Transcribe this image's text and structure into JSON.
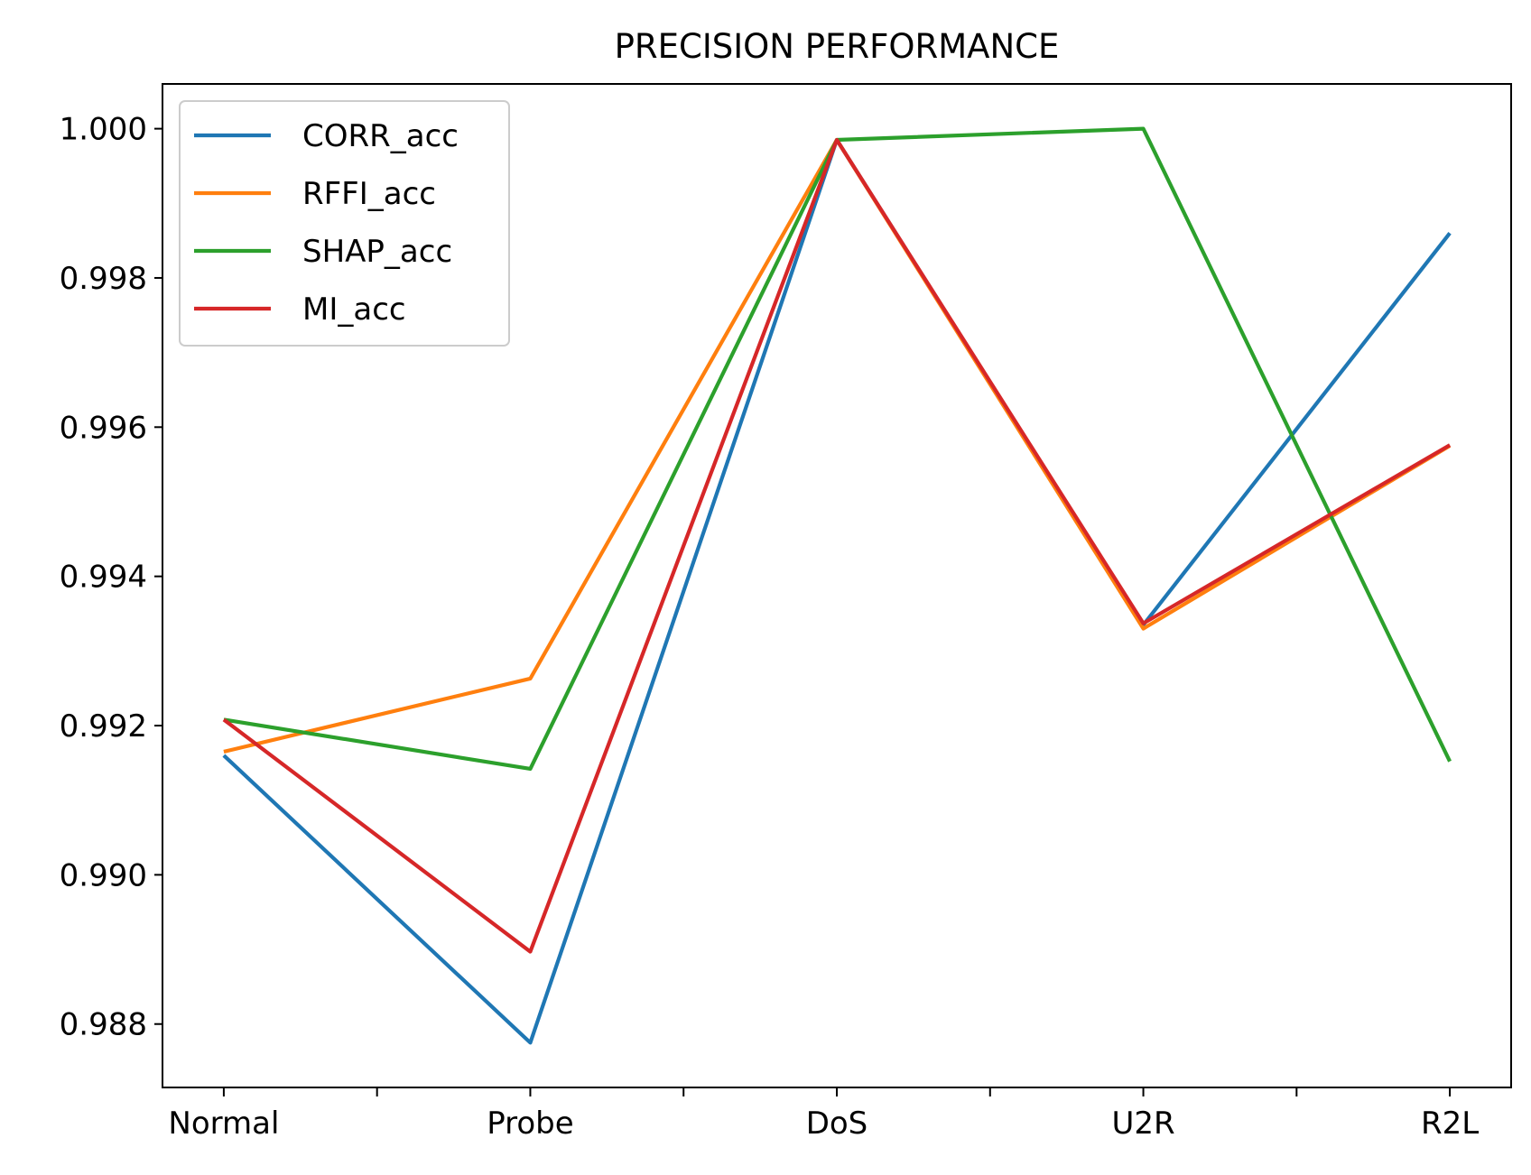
{
  "chart_data": {
    "type": "line",
    "title": "PRECISION PERFORMANCE",
    "xlabel": "",
    "ylabel": "",
    "categories": [
      "Normal",
      "Probe",
      "DoS",
      "U2R",
      "R2L"
    ],
    "ylim": [
      0.98715,
      1.0006
    ],
    "yticks": [
      0.988,
      0.99,
      0.992,
      0.994,
      0.996,
      0.998,
      1.0
    ],
    "ytick_labels": [
      "0.988",
      "0.990",
      "0.992",
      "0.994",
      "0.996",
      "0.998",
      "1.000"
    ],
    "grid": false,
    "legend_position": "upper-left",
    "series": [
      {
        "name": "CORR_acc",
        "color": "#1f77b4",
        "values": [
          0.9916,
          0.98775,
          0.99985,
          0.99335,
          0.9986
        ]
      },
      {
        "name": "RFFI_acc",
        "color": "#ff7f0e",
        "values": [
          0.99165,
          0.99263,
          0.99985,
          0.9933,
          0.99575
        ]
      },
      {
        "name": "SHAP_acc",
        "color": "#2ca02c",
        "values": [
          0.99208,
          0.99142,
          0.99985,
          1.0,
          0.99152
        ]
      },
      {
        "name": "MI_acc",
        "color": "#d62728",
        "values": [
          0.99208,
          0.98897,
          0.99985,
          0.99337,
          0.99576
        ]
      }
    ]
  }
}
